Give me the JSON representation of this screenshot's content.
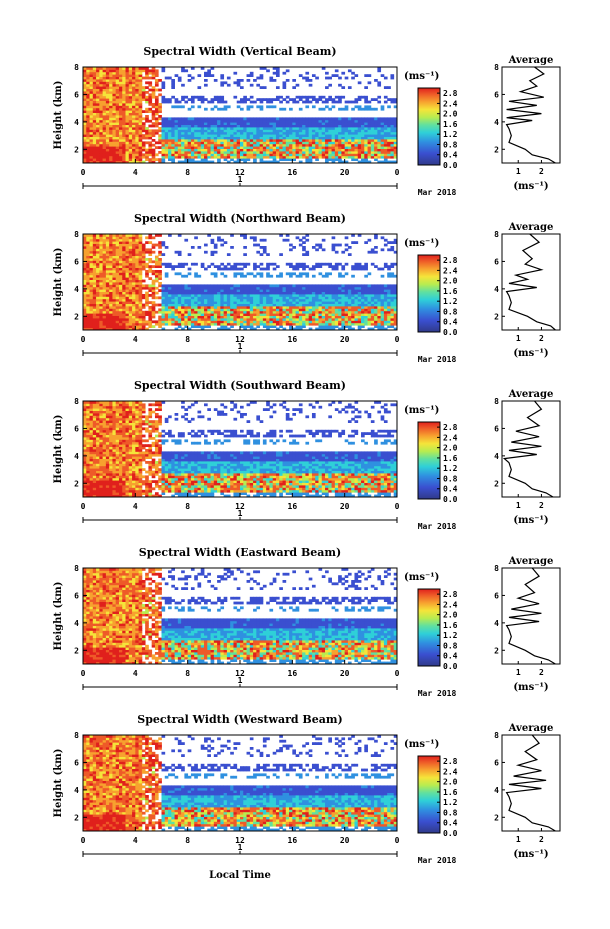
{
  "chart_data": {
    "type": "heatmap",
    "x_label": "Local Time",
    "x_ticks": [
      "0",
      "4",
      "8",
      "12",
      "16",
      "20",
      "0"
    ],
    "x_range": [
      0,
      24
    ],
    "date_day": "1",
    "date_month": "Mar 2018",
    "y_label": "Height (km)",
    "y_ticks": [
      "2",
      "4",
      "6",
      "8"
    ],
    "y_range": [
      1,
      8
    ],
    "colorbar_unit": "(ms⁻¹)",
    "colorbar_ticks": [
      "0.0",
      "0.4",
      "0.8",
      "1.2",
      "1.6",
      "2.0",
      "2.4",
      "2.8"
    ],
    "colorbar_range": [
      0.0,
      3.0
    ],
    "avg_title": "Average",
    "avg_xlabel": "(ms⁻¹)",
    "avg_x_ticks": [
      "1",
      "2"
    ],
    "avg_x_range": [
      0.3,
      2.8
    ],
    "avg_y_ticks": [
      "2",
      "4",
      "6",
      "8"
    ],
    "panels": [
      {
        "title": "Spectral Width (Vertical Beam)",
        "average": [
          [
            1,
            2.6
          ],
          [
            1.3,
            2.3
          ],
          [
            1.6,
            1.6
          ],
          [
            2,
            1.3
          ],
          [
            2.5,
            0.6
          ],
          [
            3,
            0.7
          ],
          [
            3.5,
            0.6
          ],
          [
            3.8,
            0.5
          ],
          [
            4.1,
            1.6
          ],
          [
            4.3,
            0.5
          ],
          [
            4.6,
            2.0
          ],
          [
            4.9,
            0.5
          ],
          [
            5.2,
            1.8
          ],
          [
            5.5,
            0.6
          ],
          [
            5.8,
            2.1
          ],
          [
            6.2,
            1.1
          ],
          [
            6.6,
            1.8
          ],
          [
            7,
            1.5
          ],
          [
            7.5,
            2.1
          ],
          [
            8,
            1.7
          ]
        ]
      },
      {
        "title": "Spectral Width (Northward Beam)",
        "average": [
          [
            1,
            2.6
          ],
          [
            1.3,
            2.4
          ],
          [
            1.6,
            1.8
          ],
          [
            2,
            1.4
          ],
          [
            2.5,
            0.6
          ],
          [
            3,
            0.7
          ],
          [
            3.5,
            0.6
          ],
          [
            3.8,
            0.5
          ],
          [
            4.1,
            1.8
          ],
          [
            4.4,
            0.6
          ],
          [
            4.7,
            1.4
          ],
          [
            5,
            0.9
          ],
          [
            5.4,
            2.0
          ],
          [
            5.8,
            1.3
          ],
          [
            6.2,
            1.6
          ],
          [
            6.8,
            1.2
          ],
          [
            7.4,
            1.9
          ],
          [
            8,
            1.5
          ]
        ]
      },
      {
        "title": "Spectral Width (Southward Beam)",
        "average": [
          [
            1,
            2.5
          ],
          [
            1.3,
            2.2
          ],
          [
            1.6,
            1.6
          ],
          [
            2,
            1.3
          ],
          [
            2.5,
            0.6
          ],
          [
            3,
            0.7
          ],
          [
            3.5,
            0.6
          ],
          [
            3.8,
            0.4
          ],
          [
            4.1,
            1.8
          ],
          [
            4.4,
            0.6
          ],
          [
            4.7,
            2.0
          ],
          [
            5,
            0.7
          ],
          [
            5.4,
            1.9
          ],
          [
            5.8,
            0.9
          ],
          [
            6.2,
            1.9
          ],
          [
            6.8,
            1.4
          ],
          [
            7.4,
            2.0
          ],
          [
            8,
            1.7
          ]
        ]
      },
      {
        "title": "Spectral Width (Eastward Beam)",
        "average": [
          [
            1,
            2.6
          ],
          [
            1.3,
            2.3
          ],
          [
            1.6,
            1.7
          ],
          [
            2,
            1.3
          ],
          [
            2.5,
            0.6
          ],
          [
            3,
            0.7
          ],
          [
            3.5,
            0.6
          ],
          [
            3.8,
            0.5
          ],
          [
            4.1,
            1.9
          ],
          [
            4.4,
            0.6
          ],
          [
            4.7,
            2.0
          ],
          [
            5,
            0.7
          ],
          [
            5.4,
            1.9
          ],
          [
            5.8,
            1.0
          ],
          [
            6.2,
            1.7
          ],
          [
            6.8,
            1.3
          ],
          [
            7.4,
            1.9
          ],
          [
            8,
            1.6
          ]
        ]
      },
      {
        "title": "Spectral Width (Westward Beam)",
        "average": [
          [
            1,
            2.6
          ],
          [
            1.3,
            2.3
          ],
          [
            1.6,
            1.6
          ],
          [
            2,
            1.3
          ],
          [
            2.5,
            0.6
          ],
          [
            3,
            0.7
          ],
          [
            3.5,
            0.6
          ],
          [
            3.8,
            0.5
          ],
          [
            4.1,
            2.0
          ],
          [
            4.4,
            0.6
          ],
          [
            4.7,
            2.2
          ],
          [
            5,
            0.8
          ],
          [
            5.4,
            2.0
          ],
          [
            5.8,
            1.0
          ],
          [
            6.2,
            1.8
          ],
          [
            6.8,
            1.3
          ],
          [
            7.4,
            1.9
          ],
          [
            8,
            1.6
          ]
        ]
      }
    ]
  }
}
